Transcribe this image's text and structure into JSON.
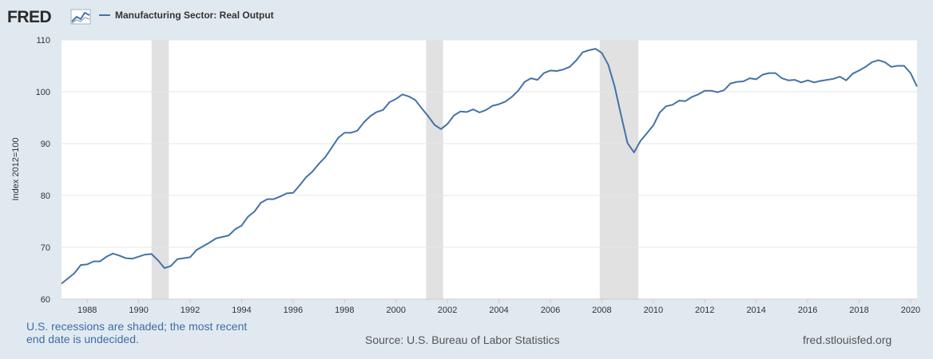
{
  "header": {
    "logo_text": "FRED",
    "series_title": "Manufacturing Sector: Real Output"
  },
  "footer": {
    "recession_note_line1": "U.S. recessions are shaded; the most recent",
    "recession_note_line2": "end date is undecided.",
    "source": "Source: U.S. Bureau of Labor Statistics",
    "site": "fred.stlouisfed.org"
  },
  "colors": {
    "background": "#e1e9f0",
    "plot_background": "#ffffff",
    "series_line": "#4572a7",
    "recession_shade": "#e1e1e1",
    "gridline": "#e6e6e6",
    "logo_accent": "#4572a7"
  },
  "chart_data": {
    "type": "line",
    "title": "",
    "xlabel": "",
    "ylabel": "Index 2012=100",
    "xlim": [
      1987.0,
      2020.25
    ],
    "ylim": [
      60,
      110
    ],
    "y_ticks": [
      60,
      70,
      80,
      90,
      100,
      110
    ],
    "x_ticks": [
      1988,
      1990,
      1992,
      1994,
      1996,
      1998,
      2000,
      2002,
      2004,
      2006,
      2008,
      2010,
      2012,
      2014,
      2016,
      2018,
      2020
    ],
    "grid": true,
    "legend": "top-left",
    "recessions": [
      [
        1990.5,
        1991.17
      ],
      [
        2001.17,
        2001.83
      ],
      [
        2007.92,
        2009.42
      ]
    ],
    "series": [
      {
        "name": "Manufacturing Sector: Real Output",
        "x": [
          1987.0,
          1987.25,
          1987.5,
          1987.75,
          1988.0,
          1988.25,
          1988.5,
          1988.75,
          1989.0,
          1989.25,
          1989.5,
          1989.75,
          1990.0,
          1990.25,
          1990.5,
          1990.75,
          1991.0,
          1991.25,
          1991.5,
          1991.75,
          1992.0,
          1992.25,
          1992.5,
          1992.75,
          1993.0,
          1993.25,
          1993.5,
          1993.75,
          1994.0,
          1994.25,
          1994.5,
          1994.75,
          1995.0,
          1995.25,
          1995.5,
          1995.75,
          1996.0,
          1996.25,
          1996.5,
          1996.75,
          1997.0,
          1997.25,
          1997.5,
          1997.75,
          1998.0,
          1998.25,
          1998.5,
          1998.75,
          1999.0,
          1999.25,
          1999.5,
          1999.75,
          2000.0,
          2000.25,
          2000.5,
          2000.75,
          2001.0,
          2001.25,
          2001.5,
          2001.75,
          2002.0,
          2002.25,
          2002.5,
          2002.75,
          2003.0,
          2003.25,
          2003.5,
          2003.75,
          2004.0,
          2004.25,
          2004.5,
          2004.75,
          2005.0,
          2005.25,
          2005.5,
          2005.75,
          2006.0,
          2006.25,
          2006.5,
          2006.75,
          2007.0,
          2007.25,
          2007.5,
          2007.75,
          2008.0,
          2008.25,
          2008.5,
          2008.75,
          2009.0,
          2009.25,
          2009.5,
          2009.75,
          2010.0,
          2010.25,
          2010.5,
          2010.75,
          2011.0,
          2011.25,
          2011.5,
          2011.75,
          2012.0,
          2012.25,
          2012.5,
          2012.75,
          2013.0,
          2013.25,
          2013.5,
          2013.75,
          2014.0,
          2014.25,
          2014.5,
          2014.75,
          2015.0,
          2015.25,
          2015.5,
          2015.75,
          2016.0,
          2016.25,
          2016.5,
          2016.75,
          2017.0,
          2017.25,
          2017.5,
          2017.75,
          2018.0,
          2018.25,
          2018.5,
          2018.75,
          2019.0,
          2019.25,
          2019.5,
          2019.75,
          2020.0,
          2020.25
        ],
        "values": [
          63.0,
          64.0,
          65.0,
          66.6,
          66.7,
          67.3,
          67.3,
          68.2,
          68.8,
          68.4,
          67.9,
          67.8,
          68.2,
          68.6,
          68.7,
          67.5,
          66.0,
          66.4,
          67.7,
          67.9,
          68.1,
          69.5,
          70.2,
          70.9,
          71.7,
          72.0,
          72.3,
          73.5,
          74.2,
          75.9,
          76.9,
          78.6,
          79.3,
          79.3,
          79.8,
          80.4,
          80.5,
          81.9,
          83.5,
          84.6,
          86.1,
          87.4,
          89.2,
          91.1,
          92.1,
          92.1,
          92.5,
          94.1,
          95.3,
          96.1,
          96.5,
          98.0,
          98.6,
          99.5,
          99.1,
          98.4,
          96.8,
          95.3,
          93.6,
          92.8,
          93.8,
          95.4,
          96.2,
          96.1,
          96.6,
          96.0,
          96.5,
          97.3,
          97.6,
          98.1,
          99.0,
          100.2,
          101.9,
          102.6,
          102.3,
          103.6,
          104.1,
          104.0,
          104.3,
          104.8,
          106.0,
          107.6,
          108.0,
          108.3,
          107.5,
          105.2,
          101.0,
          95.4,
          90.1,
          88.3,
          90.5,
          92.0,
          93.5,
          96.0,
          97.2,
          97.5,
          98.3,
          98.2,
          99.0,
          99.5,
          100.2,
          100.2,
          99.9,
          100.3,
          101.6,
          101.9,
          102.0,
          102.6,
          102.4,
          103.3,
          103.6,
          103.6,
          102.6,
          102.2,
          102.3,
          101.8,
          102.2,
          101.8,
          102.1,
          102.3,
          102.5,
          102.9,
          102.2,
          103.5,
          104.1,
          104.8,
          105.7,
          106.1,
          105.7,
          104.8,
          105.0,
          105.0,
          103.6,
          101.0
        ]
      }
    ]
  }
}
